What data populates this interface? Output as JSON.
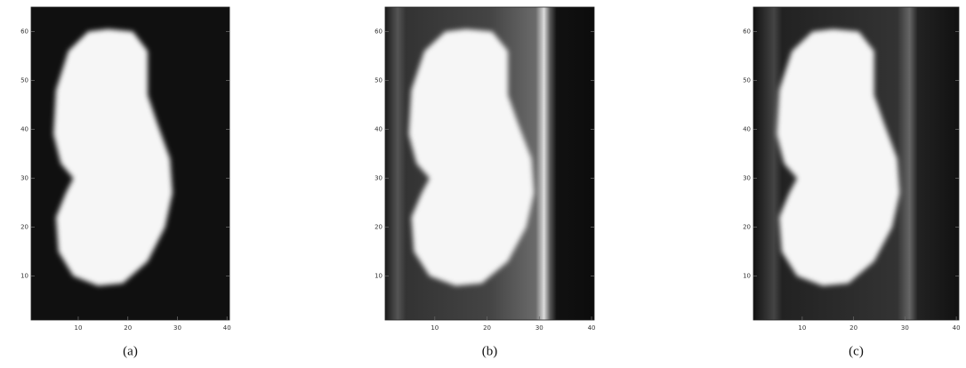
{
  "chart_data": [
    {
      "type": "image",
      "caption": "(a)",
      "xlim": [
        0.5,
        40.5
      ],
      "ylim": [
        1,
        65
      ],
      "xticks": [
        10,
        20,
        30,
        40
      ],
      "yticks": [
        10,
        20,
        30,
        40,
        50,
        60
      ]
    },
    {
      "type": "image",
      "caption": "(b)",
      "xlim": [
        0.5,
        40.5
      ],
      "ylim": [
        1,
        65
      ],
      "xticks": [
        10,
        20,
        30,
        40
      ],
      "yticks": [
        10,
        20,
        30,
        40,
        50,
        60
      ]
    },
    {
      "type": "image",
      "caption": "(c)",
      "xlim": [
        0.5,
        40.5
      ],
      "ylim": [
        1,
        65
      ],
      "xticks": [
        10,
        20,
        30,
        40
      ],
      "yticks": [
        10,
        20,
        30,
        40,
        50,
        60
      ]
    }
  ]
}
